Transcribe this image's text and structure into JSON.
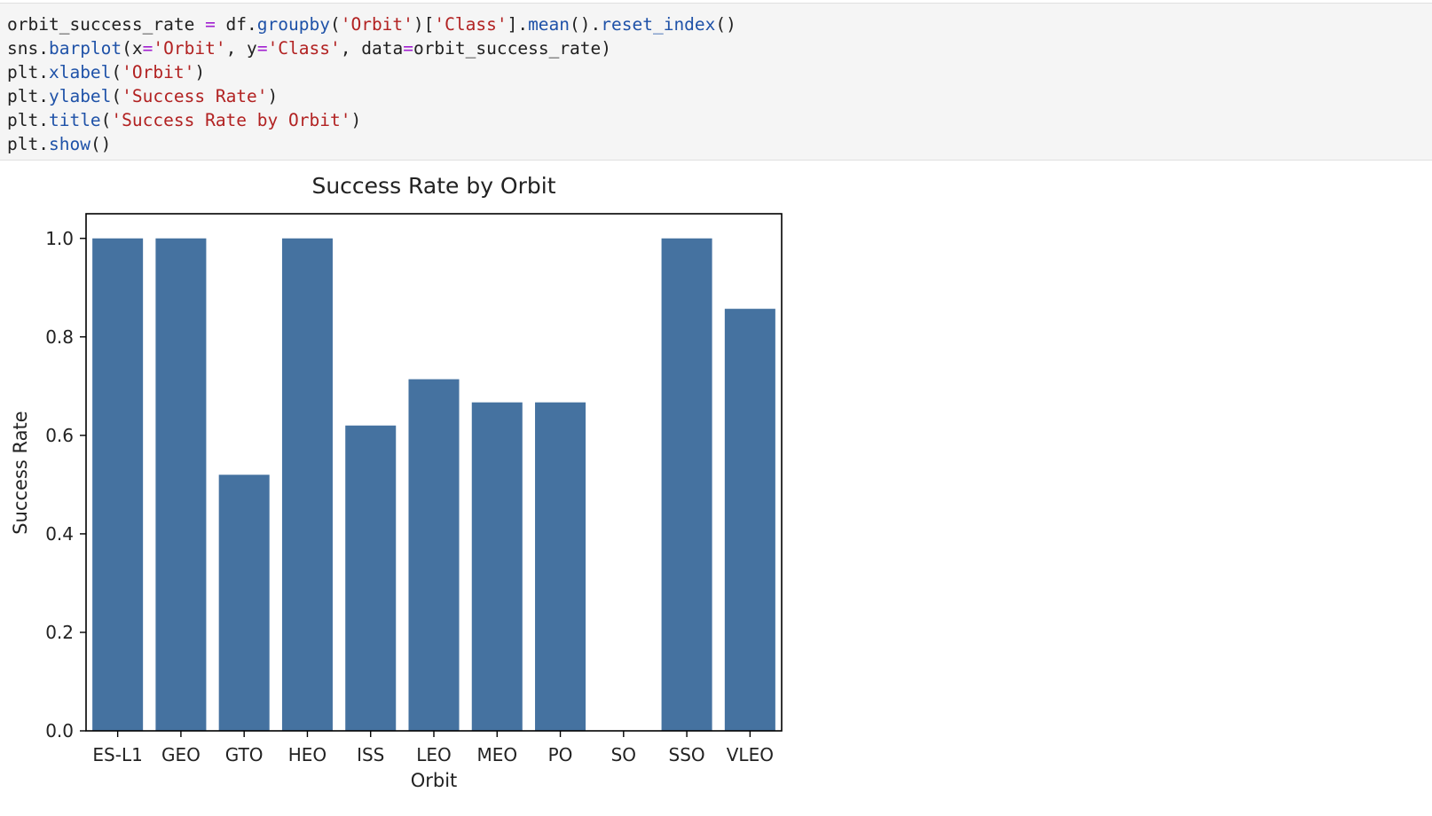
{
  "code_cell": {
    "lines": [
      [
        {
          "t": "orbit_success_rate ",
          "c": "plain"
        },
        {
          "t": "=",
          "c": "op"
        },
        {
          "t": " df.",
          "c": "plain"
        },
        {
          "t": "groupby",
          "c": "func"
        },
        {
          "t": "(",
          "c": "plain"
        },
        {
          "t": "'Orbit'",
          "c": "str"
        },
        {
          "t": ")[",
          "c": "plain"
        },
        {
          "t": "'Class'",
          "c": "str"
        },
        {
          "t": "].",
          "c": "plain"
        },
        {
          "t": "mean",
          "c": "func"
        },
        {
          "t": "().",
          "c": "plain"
        },
        {
          "t": "reset_index",
          "c": "func"
        },
        {
          "t": "()",
          "c": "plain"
        }
      ],
      [
        {
          "t": "sns.",
          "c": "plain"
        },
        {
          "t": "barplot",
          "c": "func"
        },
        {
          "t": "(x",
          "c": "plain"
        },
        {
          "t": "=",
          "c": "op"
        },
        {
          "t": "'Orbit'",
          "c": "str"
        },
        {
          "t": ", y",
          "c": "plain"
        },
        {
          "t": "=",
          "c": "op"
        },
        {
          "t": "'Class'",
          "c": "str"
        },
        {
          "t": ", data",
          "c": "plain"
        },
        {
          "t": "=",
          "c": "op"
        },
        {
          "t": "orbit_success_rate)",
          "c": "plain"
        }
      ],
      [
        {
          "t": "plt.",
          "c": "plain"
        },
        {
          "t": "xlabel",
          "c": "func"
        },
        {
          "t": "(",
          "c": "plain"
        },
        {
          "t": "'Orbit'",
          "c": "str"
        },
        {
          "t": ")",
          "c": "plain"
        }
      ],
      [
        {
          "t": "plt.",
          "c": "plain"
        },
        {
          "t": "ylabel",
          "c": "func"
        },
        {
          "t": "(",
          "c": "plain"
        },
        {
          "t": "'Success Rate'",
          "c": "str"
        },
        {
          "t": ")",
          "c": "plain"
        }
      ],
      [
        {
          "t": "plt.",
          "c": "plain"
        },
        {
          "t": "title",
          "c": "func"
        },
        {
          "t": "(",
          "c": "plain"
        },
        {
          "t": "'Success Rate by Orbit'",
          "c": "str"
        },
        {
          "t": ")",
          "c": "plain"
        }
      ],
      [
        {
          "t": "plt.",
          "c": "plain"
        },
        {
          "t": "show",
          "c": "func"
        },
        {
          "t": "()",
          "c": "plain"
        }
      ]
    ]
  },
  "colors": {
    "bar": "#4572a0",
    "code_background": "#f5f5f5",
    "code_function": "#1f52a8",
    "code_string": "#b22222",
    "code_operator": "#a11fd0"
  },
  "chart_data": {
    "type": "bar",
    "title": "Success Rate by Orbit",
    "xlabel": "Orbit",
    "ylabel": "Success Rate",
    "categories": [
      "ES-L1",
      "GEO",
      "GTO",
      "HEO",
      "ISS",
      "LEO",
      "MEO",
      "PO",
      "SO",
      "SSO",
      "VLEO"
    ],
    "values": [
      1.0,
      1.0,
      0.52,
      1.0,
      0.62,
      0.714,
      0.667,
      0.667,
      0.0,
      1.0,
      0.857
    ],
    "ylim": [
      0,
      1.05
    ],
    "yticks": [
      "0.0",
      "0.2",
      "0.4",
      "0.6",
      "0.8",
      "1.0"
    ],
    "grid": false,
    "legend": "none"
  }
}
